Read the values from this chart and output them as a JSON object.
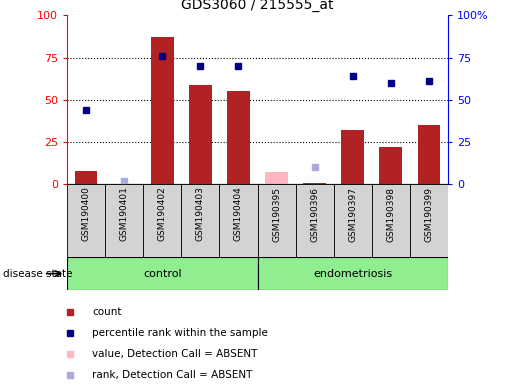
{
  "title": "GDS3060 / 215555_at",
  "samples": [
    "GSM190400",
    "GSM190401",
    "GSM190402",
    "GSM190403",
    "GSM190404",
    "GSM190395",
    "GSM190396",
    "GSM190397",
    "GSM190398",
    "GSM190399"
  ],
  "groups": [
    {
      "label": "control",
      "start": 0,
      "end": 4
    },
    {
      "label": "endometriosis",
      "start": 5,
      "end": 9
    }
  ],
  "bar_values": [
    8,
    0,
    87,
    59,
    55,
    0,
    1,
    32,
    22,
    35
  ],
  "blue_square_values": [
    44,
    null,
    76,
    70,
    70,
    null,
    null,
    64,
    60,
    61
  ],
  "pink_bar_values": [
    null,
    null,
    null,
    null,
    null,
    7,
    null,
    null,
    null,
    null
  ],
  "light_blue_square_values": [
    null,
    2,
    null,
    null,
    null,
    null,
    10,
    null,
    null,
    null
  ],
  "left_ylim": [
    0,
    100
  ],
  "right_ylim": [
    0,
    100
  ],
  "left_yticks": [
    0,
    25,
    50,
    75,
    100
  ],
  "right_yticks": [
    0,
    25,
    50,
    75,
    100
  ],
  "right_yticklabels": [
    "0",
    "25",
    "50",
    "75",
    "100%"
  ],
  "bar_color": "#B22222",
  "pink_bar_color": "#FFB6C1",
  "blue_square_color": "#00008B",
  "light_blue_square_color": "#AAAADD",
  "group_bg_color": "#90EE90",
  "tick_label_bg": "#D3D3D3",
  "disease_state_label": "disease state",
  "legend_items": [
    {
      "color": "#B22222",
      "label": "count"
    },
    {
      "color": "#00008B",
      "label": "percentile rank within the sample"
    },
    {
      "color": "#FFB6C1",
      "label": "value, Detection Call = ABSENT"
    },
    {
      "color": "#AAAADD",
      "label": "rank, Detection Call = ABSENT"
    }
  ]
}
